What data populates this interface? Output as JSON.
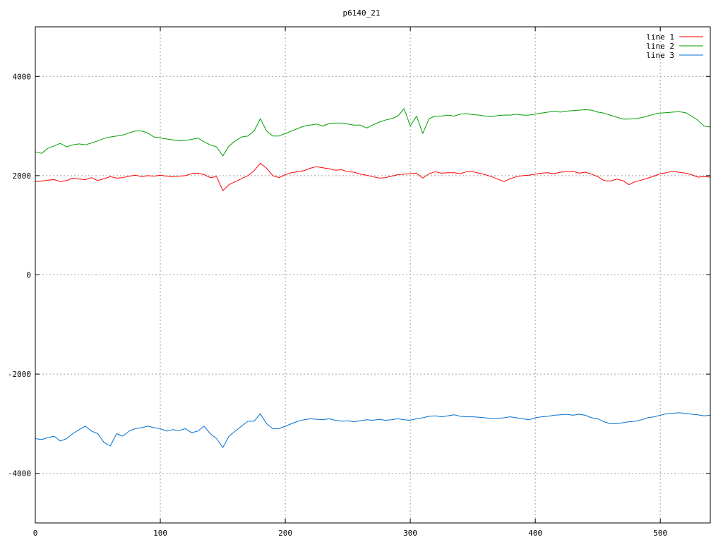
{
  "chart_data": {
    "type": "line",
    "title": "p6140_21",
    "xlabel": "",
    "ylabel": "",
    "xlim": [
      0,
      540
    ],
    "ylim": [
      -5000,
      5000
    ],
    "x_ticks": [
      0,
      100,
      200,
      300,
      400,
      500
    ],
    "y_ticks": [
      -4000,
      -2000,
      0,
      2000,
      4000
    ],
    "y_tick_labels": [
      "-4000",
      "-2000",
      "0",
      "2000",
      "4000"
    ],
    "grid": true,
    "legend_position": "top-right",
    "x": [
      0,
      5,
      10,
      15,
      20,
      25,
      30,
      35,
      40,
      45,
      50,
      55,
      60,
      65,
      70,
      75,
      80,
      85,
      90,
      95,
      100,
      105,
      110,
      115,
      120,
      125,
      130,
      135,
      140,
      145,
      150,
      155,
      160,
      165,
      170,
      175,
      180,
      185,
      190,
      195,
      200,
      205,
      210,
      215,
      220,
      225,
      230,
      235,
      240,
      245,
      250,
      255,
      260,
      265,
      270,
      275,
      280,
      285,
      290,
      295,
      300,
      305,
      310,
      315,
      320,
      325,
      330,
      335,
      340,
      345,
      350,
      355,
      360,
      365,
      370,
      375,
      380,
      385,
      390,
      395,
      400,
      405,
      410,
      415,
      420,
      425,
      430,
      435,
      440,
      445,
      450,
      455,
      460,
      465,
      470,
      475,
      480,
      485,
      490,
      495,
      500,
      505,
      510,
      515,
      520,
      525,
      530,
      535,
      540
    ],
    "series": [
      {
        "name": "line 1",
        "color": "#ff0000",
        "values": [
          1880,
          1890,
          1910,
          1920,
          1880,
          1900,
          1950,
          1930,
          1920,
          1960,
          1900,
          1940,
          1980,
          1950,
          1960,
          1990,
          2010,
          1980,
          2000,
          1990,
          2010,
          1990,
          1980,
          1990,
          2000,
          2040,
          2050,
          2020,
          1960,
          1980,
          1700,
          1820,
          1880,
          1940,
          2000,
          2100,
          2250,
          2150,
          2000,
          1960,
          2020,
          2060,
          2080,
          2100,
          2150,
          2180,
          2160,
          2140,
          2110,
          2120,
          2080,
          2070,
          2030,
          2010,
          1980,
          1950,
          1960,
          1990,
          2020,
          2030,
          2040,
          2050,
          1950,
          2040,
          2080,
          2050,
          2060,
          2060,
          2040,
          2080,
          2080,
          2050,
          2020,
          1980,
          1930,
          1880,
          1940,
          1980,
          2000,
          2010,
          2030,
          2050,
          2060,
          2040,
          2070,
          2080,
          2090,
          2050,
          2070,
          2030,
          1980,
          1900,
          1890,
          1930,
          1900,
          1820,
          1880,
          1910,
          1950,
          1990,
          2040,
          2060,
          2090,
          2070,
          2050,
          2020,
          1970,
          1980,
          1970
        ]
      },
      {
        "name": "line 2",
        "color": "#00a000",
        "values": [
          2480,
          2450,
          2550,
          2600,
          2650,
          2580,
          2620,
          2640,
          2620,
          2660,
          2700,
          2750,
          2780,
          2800,
          2820,
          2860,
          2900,
          2900,
          2860,
          2780,
          2760,
          2740,
          2720,
          2700,
          2710,
          2730,
          2760,
          2680,
          2620,
          2580,
          2400,
          2600,
          2700,
          2780,
          2800,
          2900,
          3150,
          2900,
          2800,
          2800,
          2850,
          2900,
          2950,
          3000,
          3020,
          3040,
          3000,
          3050,
          3060,
          3060,
          3040,
          3020,
          3020,
          2960,
          3020,
          3080,
          3120,
          3150,
          3200,
          3350,
          3000,
          3200,
          2850,
          3150,
          3200,
          3200,
          3220,
          3200,
          3240,
          3250,
          3230,
          3220,
          3200,
          3190,
          3210,
          3220,
          3220,
          3240,
          3220,
          3220,
          3240,
          3260,
          3280,
          3300,
          3280,
          3300,
          3310,
          3320,
          3330,
          3320,
          3280,
          3260,
          3220,
          3180,
          3140,
          3140,
          3150,
          3170,
          3200,
          3240,
          3260,
          3270,
          3280,
          3290,
          3270,
          3200,
          3120,
          3000,
          2980
        ]
      },
      {
        "name": "line 3",
        "color": "#0070d0",
        "values": [
          -3300,
          -3320,
          -3280,
          -3250,
          -3350,
          -3300,
          -3200,
          -3120,
          -3050,
          -3150,
          -3200,
          -3380,
          -3450,
          -3200,
          -3250,
          -3150,
          -3100,
          -3080,
          -3050,
          -3080,
          -3100,
          -3150,
          -3120,
          -3140,
          -3100,
          -3180,
          -3150,
          -3050,
          -3200,
          -3300,
          -3480,
          -3250,
          -3150,
          -3050,
          -2950,
          -2950,
          -2800,
          -3000,
          -3100,
          -3100,
          -3050,
          -3000,
          -2950,
          -2920,
          -2900,
          -2910,
          -2920,
          -2900,
          -2930,
          -2950,
          -2940,
          -2960,
          -2940,
          -2920,
          -2930,
          -2910,
          -2930,
          -2920,
          -2900,
          -2920,
          -2930,
          -2900,
          -2880,
          -2850,
          -2840,
          -2860,
          -2840,
          -2820,
          -2850,
          -2860,
          -2860,
          -2870,
          -2880,
          -2900,
          -2890,
          -2880,
          -2860,
          -2880,
          -2900,
          -2920,
          -2880,
          -2860,
          -2850,
          -2830,
          -2820,
          -2810,
          -2830,
          -2810,
          -2830,
          -2880,
          -2900,
          -2960,
          -3000,
          -3000,
          -2980,
          -2960,
          -2950,
          -2920,
          -2880,
          -2860,
          -2830,
          -2800,
          -2790,
          -2780,
          -2790,
          -2810,
          -2820,
          -2840,
          -2830
        ]
      }
    ]
  }
}
